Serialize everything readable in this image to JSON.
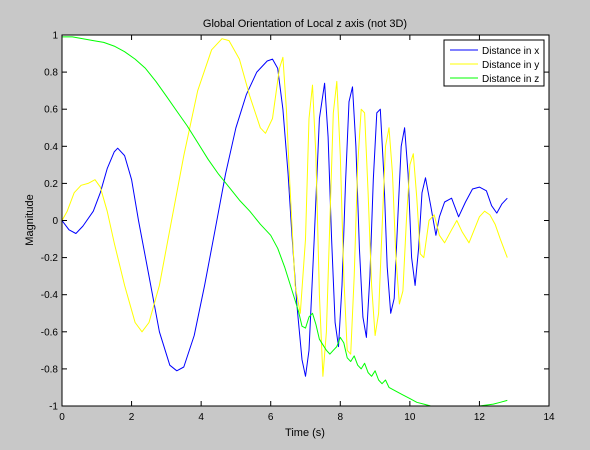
{
  "chart_data": {
    "type": "line",
    "title": "Global Orientation of Local z axis (not 3D)",
    "xlabel": "Time (s)",
    "ylabel": "Magnitude",
    "xlim": [
      0,
      14
    ],
    "ylim": [
      -1,
      1
    ],
    "xticks": [
      "0",
      "2",
      "4",
      "6",
      "8",
      "10",
      "12",
      "14"
    ],
    "yticks": [
      "-1",
      "-0.8",
      "-0.6",
      "-0.4",
      "-0.2",
      "0",
      "0.2",
      "0.4",
      "0.6",
      "0.8",
      "1"
    ],
    "grid": false,
    "legend_position": "top-right",
    "colors": {
      "axes_bg": "#ffffff",
      "figure_bg": "#c8c8c8"
    },
    "series": [
      {
        "name": "Distance in x",
        "color": "#0000ff",
        "points": [
          [
            0.0,
            0.0
          ],
          [
            0.2,
            -0.05
          ],
          [
            0.4,
            -0.07
          ],
          [
            0.6,
            -0.03
          ],
          [
            0.9,
            0.05
          ],
          [
            1.1,
            0.15
          ],
          [
            1.3,
            0.28
          ],
          [
            1.5,
            0.37
          ],
          [
            1.6,
            0.39
          ],
          [
            1.8,
            0.35
          ],
          [
            2.0,
            0.22
          ],
          [
            2.2,
            0.0
          ],
          [
            2.5,
            -0.3
          ],
          [
            2.8,
            -0.6
          ],
          [
            3.1,
            -0.78
          ],
          [
            3.3,
            -0.81
          ],
          [
            3.5,
            -0.79
          ],
          [
            3.8,
            -0.62
          ],
          [
            4.1,
            -0.35
          ],
          [
            4.4,
            -0.05
          ],
          [
            4.7,
            0.25
          ],
          [
            5.0,
            0.5
          ],
          [
            5.3,
            0.68
          ],
          [
            5.6,
            0.8
          ],
          [
            5.9,
            0.86
          ],
          [
            6.05,
            0.87
          ],
          [
            6.2,
            0.82
          ],
          [
            6.35,
            0.6
          ],
          [
            6.5,
            0.25
          ],
          [
            6.6,
            -0.05
          ],
          [
            6.75,
            -0.45
          ],
          [
            6.9,
            -0.75
          ],
          [
            7.0,
            -0.84
          ],
          [
            7.1,
            -0.7
          ],
          [
            7.25,
            -0.1
          ],
          [
            7.4,
            0.55
          ],
          [
            7.55,
            0.74
          ],
          [
            7.65,
            0.45
          ],
          [
            7.75,
            -0.1
          ],
          [
            7.85,
            -0.55
          ],
          [
            7.95,
            -0.68
          ],
          [
            8.05,
            -0.35
          ],
          [
            8.15,
            0.2
          ],
          [
            8.25,
            0.64
          ],
          [
            8.35,
            0.72
          ],
          [
            8.45,
            0.4
          ],
          [
            8.55,
            -0.15
          ],
          [
            8.65,
            -0.52
          ],
          [
            8.75,
            -0.63
          ],
          [
            8.85,
            -0.3
          ],
          [
            8.95,
            0.22
          ],
          [
            9.05,
            0.58
          ],
          [
            9.15,
            0.6
          ],
          [
            9.25,
            0.25
          ],
          [
            9.35,
            -0.25
          ],
          [
            9.45,
            -0.5
          ],
          [
            9.55,
            -0.42
          ],
          [
            9.65,
            0.0
          ],
          [
            9.75,
            0.4
          ],
          [
            9.85,
            0.5
          ],
          [
            9.95,
            0.25
          ],
          [
            10.05,
            -0.2
          ],
          [
            10.15,
            -0.35
          ],
          [
            10.25,
            -0.15
          ],
          [
            10.35,
            0.15
          ],
          [
            10.45,
            0.23
          ],
          [
            10.6,
            0.08
          ],
          [
            10.75,
            -0.08
          ],
          [
            10.85,
            0.02
          ],
          [
            11.0,
            0.1
          ],
          [
            11.2,
            0.12
          ],
          [
            11.4,
            0.02
          ],
          [
            11.6,
            0.1
          ],
          [
            11.8,
            0.17
          ],
          [
            12.0,
            0.18
          ],
          [
            12.2,
            0.16
          ],
          [
            12.35,
            0.08
          ],
          [
            12.5,
            0.04
          ],
          [
            12.65,
            0.09
          ],
          [
            12.8,
            0.12
          ]
        ]
      },
      {
        "name": "Distance in y",
        "color": "#ffff00",
        "points": [
          [
            0.0,
            0.0
          ],
          [
            0.15,
            0.05
          ],
          [
            0.35,
            0.15
          ],
          [
            0.55,
            0.19
          ],
          [
            0.75,
            0.2
          ],
          [
            0.95,
            0.22
          ],
          [
            1.1,
            0.18
          ],
          [
            1.3,
            0.05
          ],
          [
            1.5,
            -0.12
          ],
          [
            1.8,
            -0.35
          ],
          [
            2.1,
            -0.55
          ],
          [
            2.3,
            -0.6
          ],
          [
            2.5,
            -0.55
          ],
          [
            2.8,
            -0.35
          ],
          [
            3.1,
            -0.05
          ],
          [
            3.5,
            0.35
          ],
          [
            3.9,
            0.7
          ],
          [
            4.3,
            0.92
          ],
          [
            4.6,
            0.98
          ],
          [
            4.8,
            0.97
          ],
          [
            5.1,
            0.87
          ],
          [
            5.4,
            0.67
          ],
          [
            5.7,
            0.5
          ],
          [
            5.85,
            0.47
          ],
          [
            6.05,
            0.55
          ],
          [
            6.25,
            0.82
          ],
          [
            6.35,
            0.88
          ],
          [
            6.45,
            0.6
          ],
          [
            6.55,
            0.2
          ],
          [
            6.7,
            -0.35
          ],
          [
            6.85,
            -0.5
          ],
          [
            7.0,
            -0.1
          ],
          [
            7.1,
            0.55
          ],
          [
            7.2,
            0.73
          ],
          [
            7.3,
            0.35
          ],
          [
            7.4,
            -0.4
          ],
          [
            7.5,
            -0.84
          ],
          [
            7.6,
            -0.6
          ],
          [
            7.7,
            0.0
          ],
          [
            7.8,
            0.58
          ],
          [
            7.9,
            0.75
          ],
          [
            8.0,
            0.35
          ],
          [
            8.1,
            -0.3
          ],
          [
            8.2,
            -0.7
          ],
          [
            8.3,
            -0.72
          ],
          [
            8.4,
            -0.3
          ],
          [
            8.5,
            0.3
          ],
          [
            8.6,
            0.6
          ],
          [
            8.7,
            0.58
          ],
          [
            8.8,
            0.15
          ],
          [
            8.9,
            -0.35
          ],
          [
            9.0,
            -0.62
          ],
          [
            9.1,
            -0.5
          ],
          [
            9.2,
            -0.05
          ],
          [
            9.3,
            0.4
          ],
          [
            9.4,
            0.5
          ],
          [
            9.5,
            0.25
          ],
          [
            9.6,
            -0.2
          ],
          [
            9.7,
            -0.45
          ],
          [
            9.8,
            -0.38
          ],
          [
            9.9,
            0.0
          ],
          [
            10.0,
            0.3
          ],
          [
            10.1,
            0.36
          ],
          [
            10.2,
            0.12
          ],
          [
            10.3,
            -0.18
          ],
          [
            10.4,
            -0.2
          ],
          [
            10.55,
            0.0
          ],
          [
            10.7,
            0.03
          ],
          [
            10.85,
            -0.08
          ],
          [
            11.0,
            -0.12
          ],
          [
            11.2,
            -0.05
          ],
          [
            11.35,
            0.0
          ],
          [
            11.5,
            -0.06
          ],
          [
            11.7,
            -0.12
          ],
          [
            11.85,
            -0.05
          ],
          [
            12.0,
            0.02
          ],
          [
            12.15,
            0.05
          ],
          [
            12.3,
            0.03
          ],
          [
            12.45,
            -0.02
          ],
          [
            12.6,
            -0.1
          ],
          [
            12.8,
            -0.2
          ]
        ]
      },
      {
        "name": "Distance in z",
        "color": "#00ff00",
        "points": [
          [
            0.0,
            0.99
          ],
          [
            0.3,
            0.99
          ],
          [
            0.6,
            0.98
          ],
          [
            0.9,
            0.97
          ],
          [
            1.2,
            0.96
          ],
          [
            1.5,
            0.94
          ],
          [
            1.8,
            0.91
          ],
          [
            2.1,
            0.87
          ],
          [
            2.4,
            0.82
          ],
          [
            2.7,
            0.75
          ],
          [
            3.0,
            0.67
          ],
          [
            3.3,
            0.59
          ],
          [
            3.6,
            0.51
          ],
          [
            3.9,
            0.42
          ],
          [
            4.2,
            0.33
          ],
          [
            4.5,
            0.25
          ],
          [
            4.8,
            0.18
          ],
          [
            5.1,
            0.11
          ],
          [
            5.4,
            0.05
          ],
          [
            5.7,
            -0.02
          ],
          [
            6.0,
            -0.08
          ],
          [
            6.2,
            -0.15
          ],
          [
            6.4,
            -0.25
          ],
          [
            6.6,
            -0.37
          ],
          [
            6.8,
            -0.49
          ],
          [
            6.9,
            -0.57
          ],
          [
            7.0,
            -0.58
          ],
          [
            7.1,
            -0.52
          ],
          [
            7.2,
            -0.5
          ],
          [
            7.3,
            -0.56
          ],
          [
            7.4,
            -0.64
          ],
          [
            7.5,
            -0.67
          ],
          [
            7.6,
            -0.7
          ],
          [
            7.7,
            -0.72
          ],
          [
            7.8,
            -0.7
          ],
          [
            7.9,
            -0.68
          ],
          [
            8.0,
            -0.63
          ],
          [
            8.1,
            -0.66
          ],
          [
            8.2,
            -0.74
          ],
          [
            8.3,
            -0.76
          ],
          [
            8.4,
            -0.73
          ],
          [
            8.5,
            -0.78
          ],
          [
            8.6,
            -0.8
          ],
          [
            8.7,
            -0.77
          ],
          [
            8.8,
            -0.82
          ],
          [
            8.9,
            -0.84
          ],
          [
            9.0,
            -0.81
          ],
          [
            9.1,
            -0.86
          ],
          [
            9.2,
            -0.88
          ],
          [
            9.3,
            -0.86
          ],
          [
            9.4,
            -0.9
          ],
          [
            9.6,
            -0.92
          ],
          [
            9.8,
            -0.94
          ],
          [
            10.0,
            -0.96
          ],
          [
            10.2,
            -0.98
          ],
          [
            10.4,
            -0.99
          ],
          [
            10.6,
            -1.0
          ],
          [
            11.0,
            -1.0
          ],
          [
            11.5,
            -1.0
          ],
          [
            12.0,
            -1.0
          ],
          [
            12.4,
            -0.99
          ],
          [
            12.6,
            -0.98
          ],
          [
            12.8,
            -0.97
          ]
        ]
      }
    ]
  }
}
